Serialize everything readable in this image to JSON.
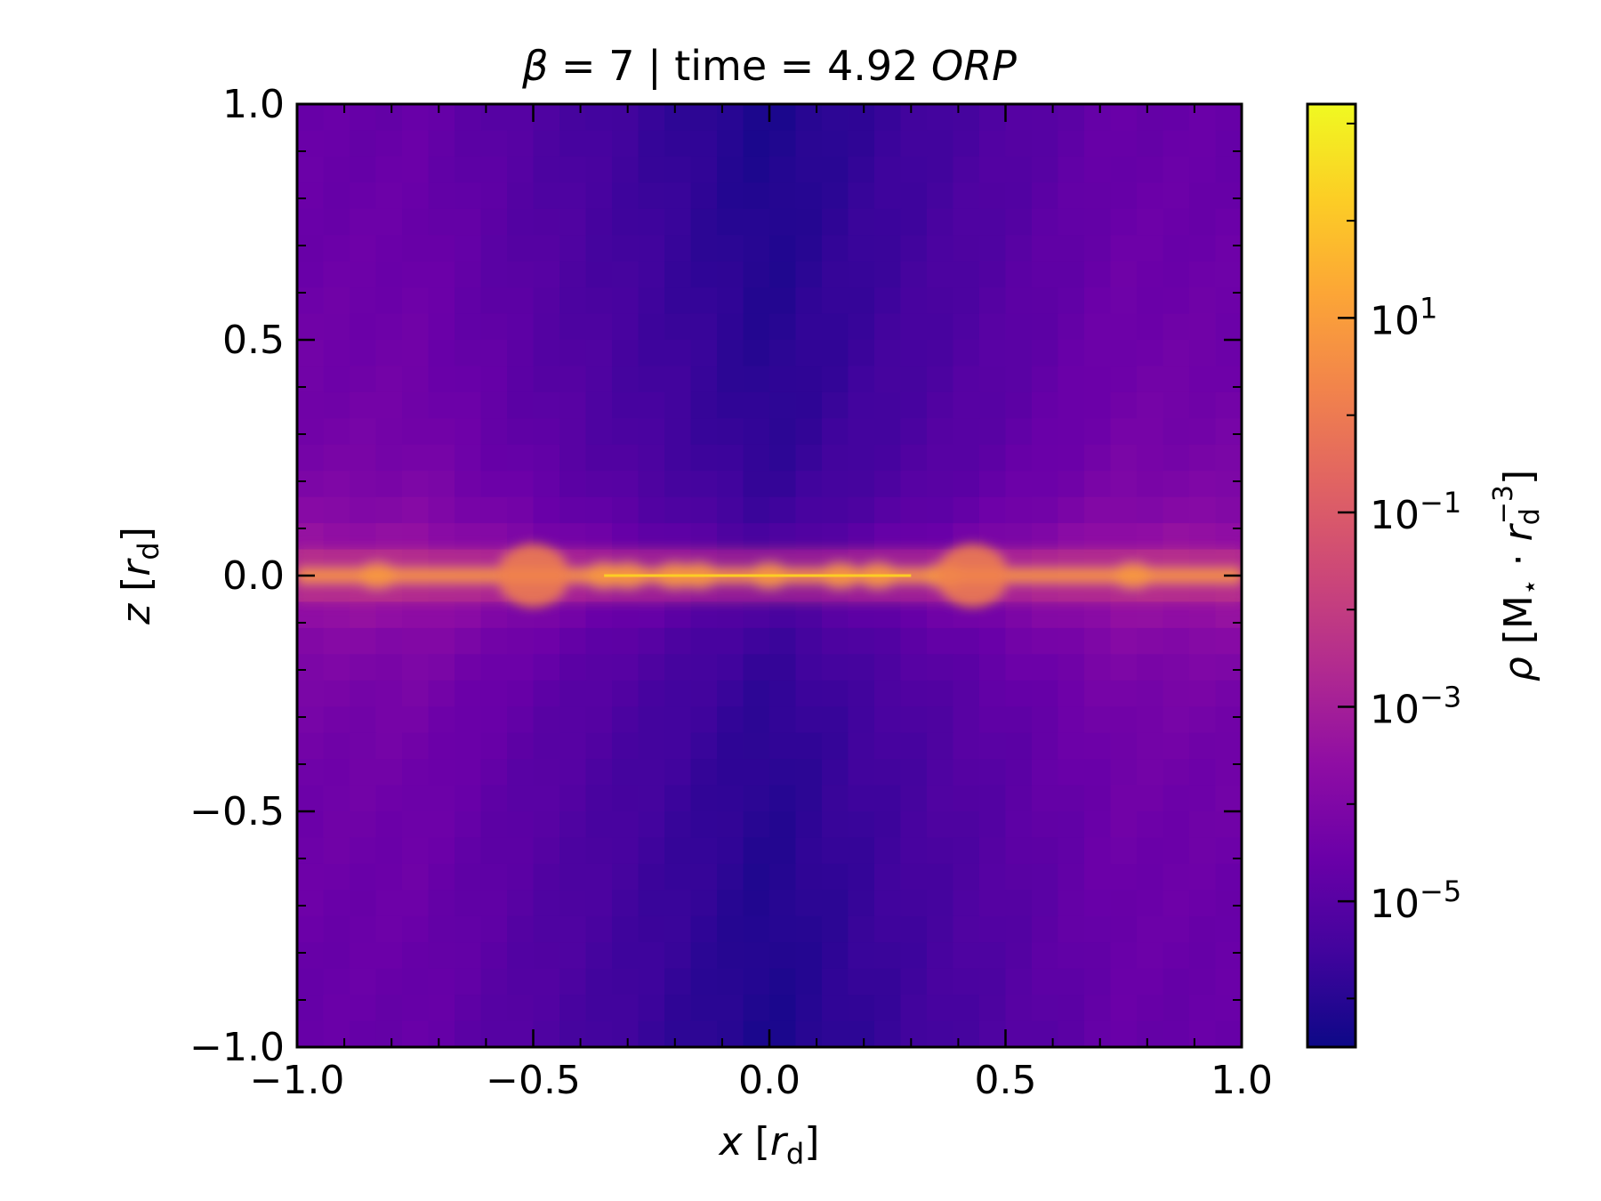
{
  "chart_data": {
    "type": "heatmap",
    "title": {
      "beta_symbol": "β",
      "beta_part": " = 7 | time = 4.92 ",
      "unit": "ORP"
    },
    "x_axis": {
      "label_var": "x",
      "label_unit_var": "r",
      "label_unit_sub": "d",
      "range": [
        -1.0,
        1.0
      ],
      "ticks": [
        -1.0,
        -0.5,
        0.0,
        0.5,
        1.0
      ],
      "tick_labels": [
        "−1.0",
        "−0.5",
        "0.0",
        "0.5",
        "1.0"
      ]
    },
    "y_axis": {
      "label_var": "z",
      "label_unit_var": "r",
      "label_unit_sub": "d",
      "range": [
        -1.0,
        1.0
      ],
      "ticks": [
        -1.0,
        -0.5,
        0.0,
        0.5,
        1.0
      ],
      "tick_labels": [
        "−1.0",
        "−0.5",
        "0.0",
        "0.5",
        "1.0"
      ]
    },
    "colorbar": {
      "label_rho": "ρ",
      "label_mass": "M",
      "label_star": "⋆",
      "label_r": "r",
      "label_sub": "d",
      "label_sup": "−3",
      "scale": "log",
      "colormap": "plasma",
      "range_log10": [
        -6.5,
        3.2
      ],
      "tick_exponents": [
        1,
        -1,
        -3,
        -5
      ],
      "tick_base": "10",
      "tick_sup": [
        "1",
        "−1",
        "−3",
        "−5"
      ]
    },
    "field": {
      "description_levels_log10": {
        "midplane_peak": 1.5,
        "midplane_clumps": [
          -0.83,
          -0.5,
          -0.35,
          -0.3,
          -0.2,
          -0.15,
          0.0,
          0.15,
          0.23,
          0.37,
          0.43,
          0.77
        ],
        "outer_envelope": -4.5,
        "polar_cavity": -6.0
      }
    }
  }
}
